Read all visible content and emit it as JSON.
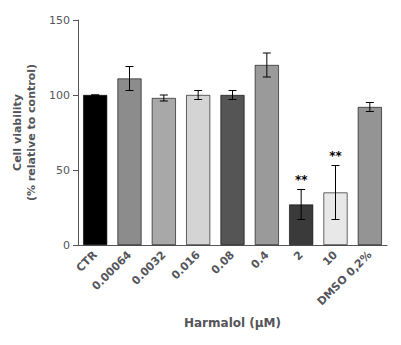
{
  "chart_data": {
    "type": "bar",
    "categories": [
      "CTR",
      "0.00064",
      "0.0032",
      "0.016",
      "0.08",
      "0.4",
      "2",
      "10",
      "DMSO 0,2%"
    ],
    "values": [
      100,
      111,
      98,
      100,
      100,
      120,
      27,
      35,
      92
    ],
    "errors": [
      0,
      8,
      2,
      3,
      3,
      8,
      10,
      18,
      3
    ],
    "colors": [
      "#000000",
      "#8c8c8c",
      "#a8a8a8",
      "#d4d4d4",
      "#555555",
      "#9a9a9a",
      "#3a3a3a",
      "#e8e8e8",
      "#949494"
    ],
    "annotations": [
      {
        "category": "2",
        "text": "**"
      },
      {
        "category": "10",
        "text": "**"
      }
    ],
    "xlabel": "Harmalol (μM)",
    "ylabel": "Cell viability\n(% relative to control)",
    "ylim": [
      0,
      150
    ],
    "yticks": [
      0,
      50,
      100,
      150
    ],
    "grid": false
  }
}
